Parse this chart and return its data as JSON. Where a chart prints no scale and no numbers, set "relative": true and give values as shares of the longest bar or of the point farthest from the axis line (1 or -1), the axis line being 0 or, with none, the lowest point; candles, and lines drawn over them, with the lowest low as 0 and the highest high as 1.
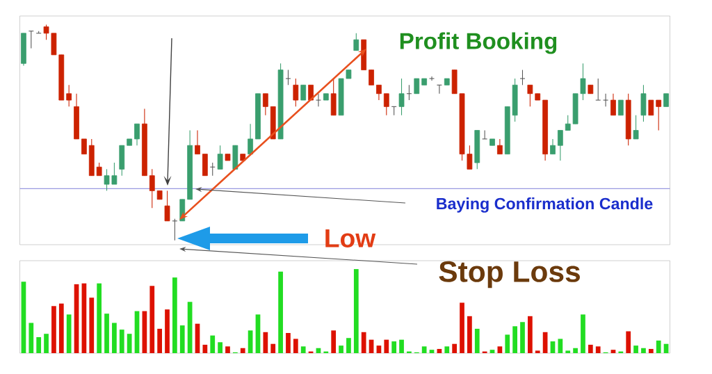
{
  "chart_data": [
    {
      "type": "candlestick",
      "relative": true,
      "categories": [
        null,
        null,
        null,
        null,
        null,
        null,
        null,
        null,
        null,
        null,
        null,
        null,
        null,
        null,
        null,
        null,
        null,
        null,
        null,
        null,
        null,
        null,
        null,
        null,
        null,
        null,
        null,
        null,
        null,
        null,
        null,
        null,
        null,
        null,
        null,
        null,
        null,
        null,
        null,
        null,
        null,
        null,
        null,
        null,
        null,
        null,
        null,
        null,
        null,
        null,
        null,
        null,
        null,
        null,
        null,
        null,
        null,
        null,
        null,
        null,
        null,
        null,
        null,
        null,
        null,
        null,
        null,
        null,
        null,
        null,
        null,
        null,
        null,
        null,
        null,
        null,
        null,
        null,
        null,
        null,
        null,
        null,
        null,
        null,
        null,
        null
      ],
      "ohlc": [
        [
          0.82,
          0.96,
          0.81,
          0.96
        ],
        [
          0.97,
          0.97,
          0.89,
          0.97
        ],
        [
          0.96,
          0.97,
          0.96,
          0.96
        ],
        [
          0.99,
          1,
          0.93,
          0.96
        ],
        [
          0.96,
          0.96,
          0.86,
          0.86
        ],
        [
          0.86,
          0.86,
          0.65,
          0.65
        ],
        [
          0.68,
          0.72,
          0.62,
          0.65
        ],
        [
          0.62,
          0.68,
          0.47,
          0.47
        ],
        [
          0.47,
          0.47,
          0.4,
          0.4
        ],
        [
          0.44,
          0.47,
          0.3,
          0.3
        ],
        [
          0.34,
          0.36,
          0.3,
          0.3
        ],
        [
          0.26,
          0.33,
          0.23,
          0.3
        ],
        [
          0.26,
          0.36,
          0.26,
          0.3
        ],
        [
          0.33,
          0.44,
          0.3,
          0.44
        ],
        [
          0.44,
          0.47,
          0.44,
          0.47
        ],
        [
          0.47,
          0.54,
          0.44,
          0.54
        ],
        [
          0.54,
          0.61,
          0.3,
          0.3
        ],
        [
          0.3,
          0.33,
          0.15,
          0.23
        ],
        [
          0.23,
          0.23,
          0.19,
          0.19
        ],
        [
          0.16,
          0.23,
          0.09,
          0.09
        ],
        [
          0.09,
          0.1,
          0,
          0.09
        ],
        [
          0.09,
          0.19,
          0.09,
          0.19
        ],
        [
          0.19,
          0.51,
          0.19,
          0.44
        ],
        [
          0.44,
          0.51,
          0.4,
          0.4
        ],
        [
          0.4,
          0.4,
          0.3,
          0.3
        ],
        [
          0.34,
          0.36,
          0.3,
          0.34
        ],
        [
          0.33,
          0.44,
          0.33,
          0.4
        ],
        [
          0.4,
          0.4,
          0.37,
          0.37
        ],
        [
          0.33,
          0.44,
          0.33,
          0.44
        ],
        [
          0.4,
          0.4,
          0.37,
          0.37
        ],
        [
          0.4,
          0.54,
          0.4,
          0.47
        ],
        [
          0.47,
          0.68,
          0.47,
          0.68
        ],
        [
          0.68,
          0.68,
          0.58,
          0.62
        ],
        [
          0.62,
          0.62,
          0.47,
          0.47
        ],
        [
          0.47,
          0.82,
          0.47,
          0.79
        ],
        [
          0.75,
          0.79,
          0.72,
          0.75
        ],
        [
          0.72,
          0.75,
          0.62,
          0.65
        ],
        [
          0.65,
          0.72,
          0.65,
          0.72
        ],
        [
          0.72,
          0.72,
          0.65,
          0.65
        ],
        [
          0.65,
          0.68,
          0.62,
          0.65
        ],
        [
          0.65,
          0.68,
          0.65,
          0.68
        ],
        [
          0.68,
          0.75,
          0.58,
          0.58
        ],
        [
          0.58,
          0.75,
          0.58,
          0.75
        ],
        [
          0.75,
          0.79,
          0.75,
          0.79
        ],
        [
          0.88,
          0.96,
          0.88,
          0.93
        ],
        [
          0.93,
          0.93,
          0.79,
          0.79
        ],
        [
          0.79,
          0.79,
          0.72,
          0.72
        ],
        [
          0.72,
          0.72,
          0.65,
          0.68
        ],
        [
          0.68,
          0.68,
          0.58,
          0.62
        ],
        [
          0.62,
          0.62,
          0.58,
          0.62
        ],
        [
          0.62,
          0.75,
          0.58,
          0.68
        ],
        [
          0.68,
          0.72,
          0.65,
          0.68
        ],
        [
          0.68,
          0.75,
          0.68,
          0.75
        ],
        [
          0.72,
          0.75,
          0.72,
          0.75
        ],
        [
          0.75,
          0.76,
          0.74,
          0.75
        ],
        [
          0.72,
          0.72,
          0.68,
          0.72
        ],
        [
          0.72,
          0.75,
          0.72,
          0.75
        ],
        [
          0.79,
          0.79,
          0.68,
          0.68
        ],
        [
          0.68,
          0.68,
          0.37,
          0.4
        ],
        [
          0.4,
          0.44,
          0.33,
          0.33
        ],
        [
          0.36,
          0.51,
          0.33,
          0.51
        ],
        [
          0.47,
          0.51,
          0.47,
          0.47
        ],
        [
          0.44,
          0.47,
          0.44,
          0.47
        ],
        [
          0.44,
          0.47,
          0.4,
          0.4
        ],
        [
          0.4,
          0.62,
          0.4,
          0.62
        ],
        [
          0.58,
          0.75,
          0.55,
          0.72
        ],
        [
          0.75,
          0.79,
          0.72,
          0.75
        ],
        [
          0.72,
          0.72,
          0.62,
          0.68
        ],
        [
          0.68,
          0.68,
          0.65,
          0.65
        ],
        [
          0.65,
          0.65,
          0.37,
          0.4
        ],
        [
          0.4,
          0.47,
          0.4,
          0.44
        ],
        [
          0.44,
          0.51,
          0.37,
          0.51
        ],
        [
          0.51,
          0.58,
          0.51,
          0.54
        ],
        [
          0.54,
          0.68,
          0.54,
          0.68
        ],
        [
          0.68,
          0.82,
          0.65,
          0.75
        ],
        [
          0.72,
          0.72,
          0.68,
          0.68
        ],
        [
          0.65,
          0.75,
          0.65,
          0.65
        ],
        [
          0.65,
          0.68,
          0.62,
          0.65
        ],
        [
          0.65,
          0.68,
          0.58,
          0.58
        ],
        [
          0.58,
          0.65,
          0.58,
          0.65
        ],
        [
          0.65,
          0.68,
          0.44,
          0.47
        ],
        [
          0.47,
          0.58,
          0.47,
          0.51
        ],
        [
          0.58,
          0.72,
          0.55,
          0.68
        ],
        [
          0.65,
          0.65,
          0.58,
          0.58
        ],
        [
          0.65,
          0.65,
          0.51,
          0.62
        ],
        [
          0.62,
          0.68,
          0.62,
          0.68
        ]
      ],
      "colors": [
        "#3a9e6e",
        "#555555",
        "#555555",
        "#cc2200",
        "#cc2200",
        "#cc2200",
        "#cc2200",
        "#cc2200",
        "#cc2200",
        "#cc2200",
        "#cc2200",
        "#3a9e6e",
        "#3a9e6e",
        "#3a9e6e",
        "#3a9e6e",
        "#3a9e6e",
        "#cc2200",
        "#cc2200",
        "#cc2200",
        "#cc2200",
        "#555555",
        "#3a9e6e",
        "#3a9e6e",
        "#cc2200",
        "#cc2200",
        "#555555",
        "#3a9e6e",
        "#cc2200",
        "#3a9e6e",
        "#cc2200",
        "#3a9e6e",
        "#3a9e6e",
        "#cc2200",
        "#cc2200",
        "#3a9e6e",
        "#555555",
        "#cc2200",
        "#3a9e6e",
        "#cc2200",
        "#555555",
        "#3a9e6e",
        "#cc2200",
        "#3a9e6e",
        "#3a9e6e",
        "#3a9e6e",
        "#cc2200",
        "#cc2200",
        "#cc2200",
        "#cc2200",
        "#555555",
        "#3a9e6e",
        "#555555",
        "#3a9e6e",
        "#3a9e6e",
        "#555555",
        "#555555",
        "#3a9e6e",
        "#cc2200",
        "#cc2200",
        "#cc2200",
        "#3a9e6e",
        "#555555",
        "#3a9e6e",
        "#cc2200",
        "#3a9e6e",
        "#3a9e6e",
        "#555555",
        "#cc2200",
        "#cc2200",
        "#cc2200",
        "#3a9e6e",
        "#3a9e6e",
        "#3a9e6e",
        "#3a9e6e",
        "#3a9e6e",
        "#cc2200",
        "#555555",
        "#555555",
        "#cc2200",
        "#3a9e6e",
        "#cc2200",
        "#3a9e6e",
        "#3a9e6e",
        "#cc2200",
        "#cc2200",
        "#3a9e6e"
      ],
      "ref_lines": [
        {
          "axis": "y",
          "value": 0.24,
          "color": "#9a9ae0"
        }
      ],
      "annotations": [
        "Profit Booking",
        "Baying Confirmation Candle",
        "Low",
        "Stop Loss"
      ]
    },
    {
      "type": "bar",
      "relative": true,
      "categories": [
        null,
        null,
        null,
        null,
        null,
        null,
        null,
        null,
        null,
        null,
        null,
        null,
        null,
        null,
        null,
        null,
        null,
        null,
        null,
        null,
        null,
        null,
        null,
        null,
        null,
        null,
        null,
        null,
        null,
        null,
        null,
        null,
        null,
        null,
        null,
        null,
        null,
        null,
        null,
        null,
        null,
        null,
        null,
        null,
        null,
        null,
        null,
        null,
        null,
        null,
        null,
        null,
        null,
        null,
        null,
        null,
        null,
        null,
        null,
        null,
        null,
        null,
        null,
        null,
        null,
        null,
        null,
        null,
        null,
        null,
        null,
        null,
        null,
        null,
        null,
        null,
        null,
        null,
        null,
        null,
        null,
        null,
        null,
        null,
        null,
        null
      ],
      "values": [
        0.85,
        0.36,
        0.19,
        0.23,
        0.56,
        0.59,
        0.46,
        0.82,
        0.83,
        0.66,
        0.83,
        0.47,
        0.36,
        0.28,
        0.23,
        0.5,
        0.5,
        0.8,
        0.29,
        0.52,
        0.9,
        0.33,
        0.61,
        0.35,
        0.1,
        0.21,
        0.13,
        0.08,
        0.01,
        0.06,
        0.27,
        0.46,
        0.25,
        0.11,
        0.97,
        0.24,
        0.17,
        0.08,
        0.02,
        0.06,
        0.02,
        0.27,
        0.09,
        0.18,
        1,
        0.25,
        0.16,
        0.09,
        0.16,
        0.14,
        0.16,
        0.02,
        0.01,
        0.08,
        0.04,
        0.05,
        0.08,
        0.11,
        0.6,
        0.44,
        0.29,
        0.02,
        0.04,
        0.08,
        0.22,
        0.32,
        0.37,
        0.44,
        0.03,
        0.25,
        0.14,
        0.17,
        0.03,
        0.06,
        0.46,
        0.1,
        0.08,
        0.01,
        0.04,
        0.02,
        0.26,
        0.09,
        0.06,
        0.05,
        0.15,
        0.11
      ],
      "colors": [
        "#22dd22",
        "#22dd22",
        "#22dd22",
        "#22dd22",
        "#dd1100",
        "#dd1100",
        "#22dd22",
        "#dd1100",
        "#dd1100",
        "#dd1100",
        "#22dd22",
        "#22dd22",
        "#22dd22",
        "#22dd22",
        "#22dd22",
        "#22dd22",
        "#dd1100",
        "#dd1100",
        "#dd1100",
        "#dd1100",
        "#22dd22",
        "#22dd22",
        "#22dd22",
        "#dd1100",
        "#dd1100",
        "#22dd22",
        "#22dd22",
        "#dd1100",
        "#22dd22",
        "#dd1100",
        "#22dd22",
        "#22dd22",
        "#dd1100",
        "#dd1100",
        "#22dd22",
        "#dd1100",
        "#dd1100",
        "#22dd22",
        "#dd1100",
        "#22dd22",
        "#22dd22",
        "#dd1100",
        "#22dd22",
        "#22dd22",
        "#22dd22",
        "#dd1100",
        "#dd1100",
        "#dd1100",
        "#dd1100",
        "#22dd22",
        "#22dd22",
        "#22dd22",
        "#22dd22",
        "#22dd22",
        "#22dd22",
        "#dd1100",
        "#22dd22",
        "#dd1100",
        "#dd1100",
        "#dd1100",
        "#22dd22",
        "#dd1100",
        "#22dd22",
        "#dd1100",
        "#22dd22",
        "#22dd22",
        "#22dd22",
        "#dd1100",
        "#dd1100",
        "#dd1100",
        "#22dd22",
        "#22dd22",
        "#22dd22",
        "#22dd22",
        "#22dd22",
        "#dd1100",
        "#dd1100",
        "#22dd22",
        "#dd1100",
        "#22dd22",
        "#dd1100",
        "#22dd22",
        "#22dd22",
        "#dd1100",
        "#22dd22",
        "#22dd22"
      ]
    }
  ]
}
